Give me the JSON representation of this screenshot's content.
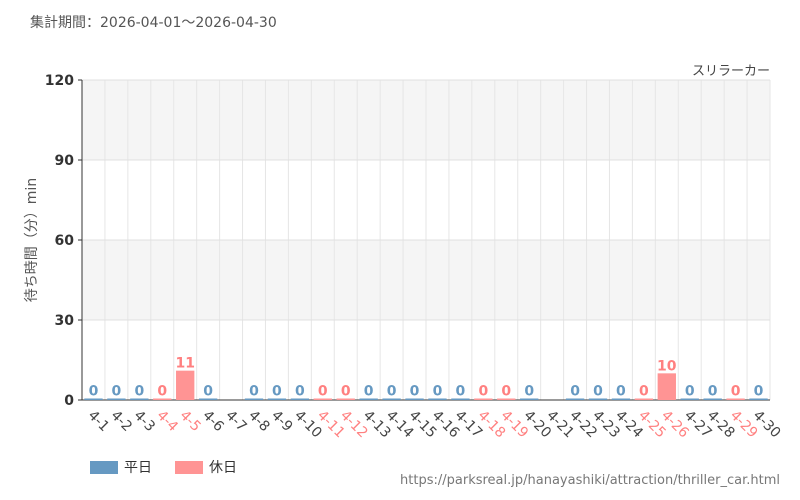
{
  "header": {
    "period_label": "集計期間：2026-04-01～2026-04-30"
  },
  "chart_data": {
    "type": "bar",
    "title": "スリラーカー",
    "ylabel": "待ち時間（分）min",
    "xlabel": "",
    "ylim": [
      0,
      120
    ],
    "yticks": [
      0,
      30,
      60,
      90,
      120
    ],
    "grid": true,
    "categories": [
      "4-1",
      "4-2",
      "4-3",
      "4-4",
      "4-5",
      "4-6",
      "4-7",
      "4-8",
      "4-9",
      "4-10",
      "4-11",
      "4-12",
      "4-13",
      "4-14",
      "4-15",
      "4-16",
      "4-17",
      "4-18",
      "4-19",
      "4-20",
      "4-21",
      "4-22",
      "4-23",
      "4-24",
      "4-25",
      "4-26",
      "4-27",
      "4-28",
      "4-29",
      "4-30"
    ],
    "day_type": [
      "weekday",
      "weekday",
      "weekday",
      "holiday",
      "holiday",
      "weekday",
      "weekday",
      "weekday",
      "weekday",
      "weekday",
      "holiday",
      "holiday",
      "weekday",
      "weekday",
      "weekday",
      "weekday",
      "weekday",
      "holiday",
      "holiday",
      "weekday",
      "weekday",
      "weekday",
      "weekday",
      "weekday",
      "holiday",
      "holiday",
      "weekday",
      "weekday",
      "holiday",
      "weekday"
    ],
    "values": [
      0,
      0,
      0,
      0,
      11,
      0,
      null,
      0,
      0,
      0,
      0,
      0,
      0,
      0,
      0,
      0,
      0,
      0,
      0,
      0,
      null,
      0,
      0,
      0,
      0,
      10,
      0,
      0,
      0,
      0
    ],
    "series": [
      {
        "name": "平日",
        "color": "#6699c2"
      },
      {
        "name": "休日",
        "color": "#ff9494"
      }
    ],
    "legend_position": "bottom-left"
  },
  "colors": {
    "weekday_bar": "#6699c2",
    "holiday_bar": "#ff9494",
    "weekday_label": "#6699c2",
    "holiday_label": "#ff8080",
    "holiday_tick": "#ff8080",
    "weekday_tick": "#444444"
  },
  "footer": {
    "source_url": "https://parksreal.jp/hanayashiki/attraction/thriller_car.html"
  }
}
